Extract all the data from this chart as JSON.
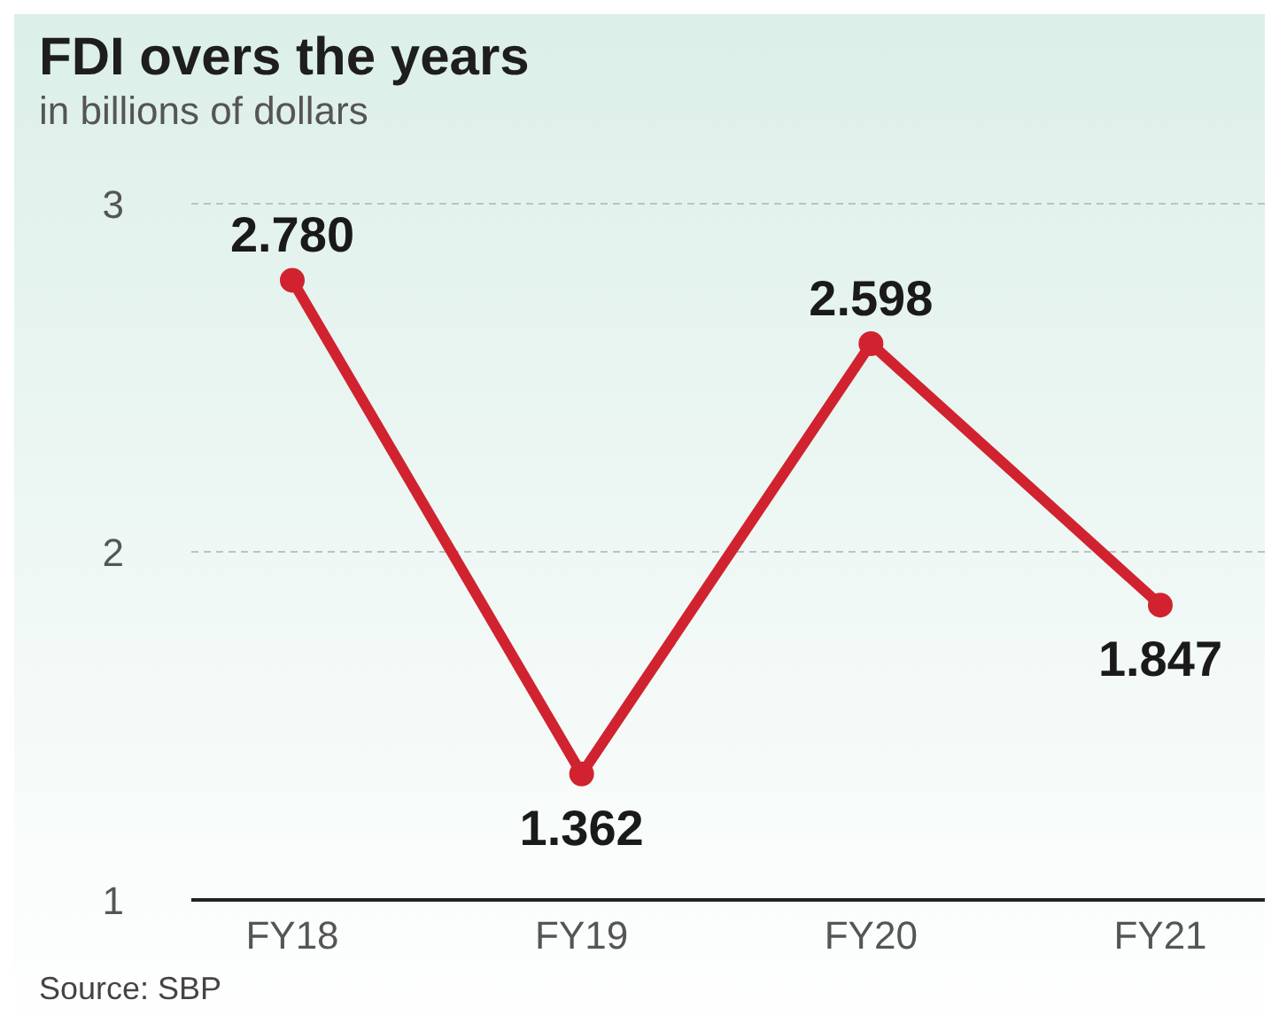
{
  "chart_data": {
    "type": "line",
    "title": "FDI overs the years",
    "subtitle": "in billions of dollars",
    "categories": [
      "FY18",
      "FY19",
      "FY20",
      "FY21"
    ],
    "series": [
      {
        "color": "#d1232f",
        "values": [
          2.78,
          1.362,
          2.598,
          1.847
        ],
        "value_labels": [
          "2.780",
          "1.362",
          "2.598",
          "1.847"
        ]
      }
    ],
    "ylim": [
      1,
      3
    ],
    "yticks": [
      1,
      2,
      3
    ],
    "grid": "y",
    "marker": "circle",
    "line_style": "solid",
    "legend": false,
    "annotations": [
      "Source: SBP"
    ]
  }
}
